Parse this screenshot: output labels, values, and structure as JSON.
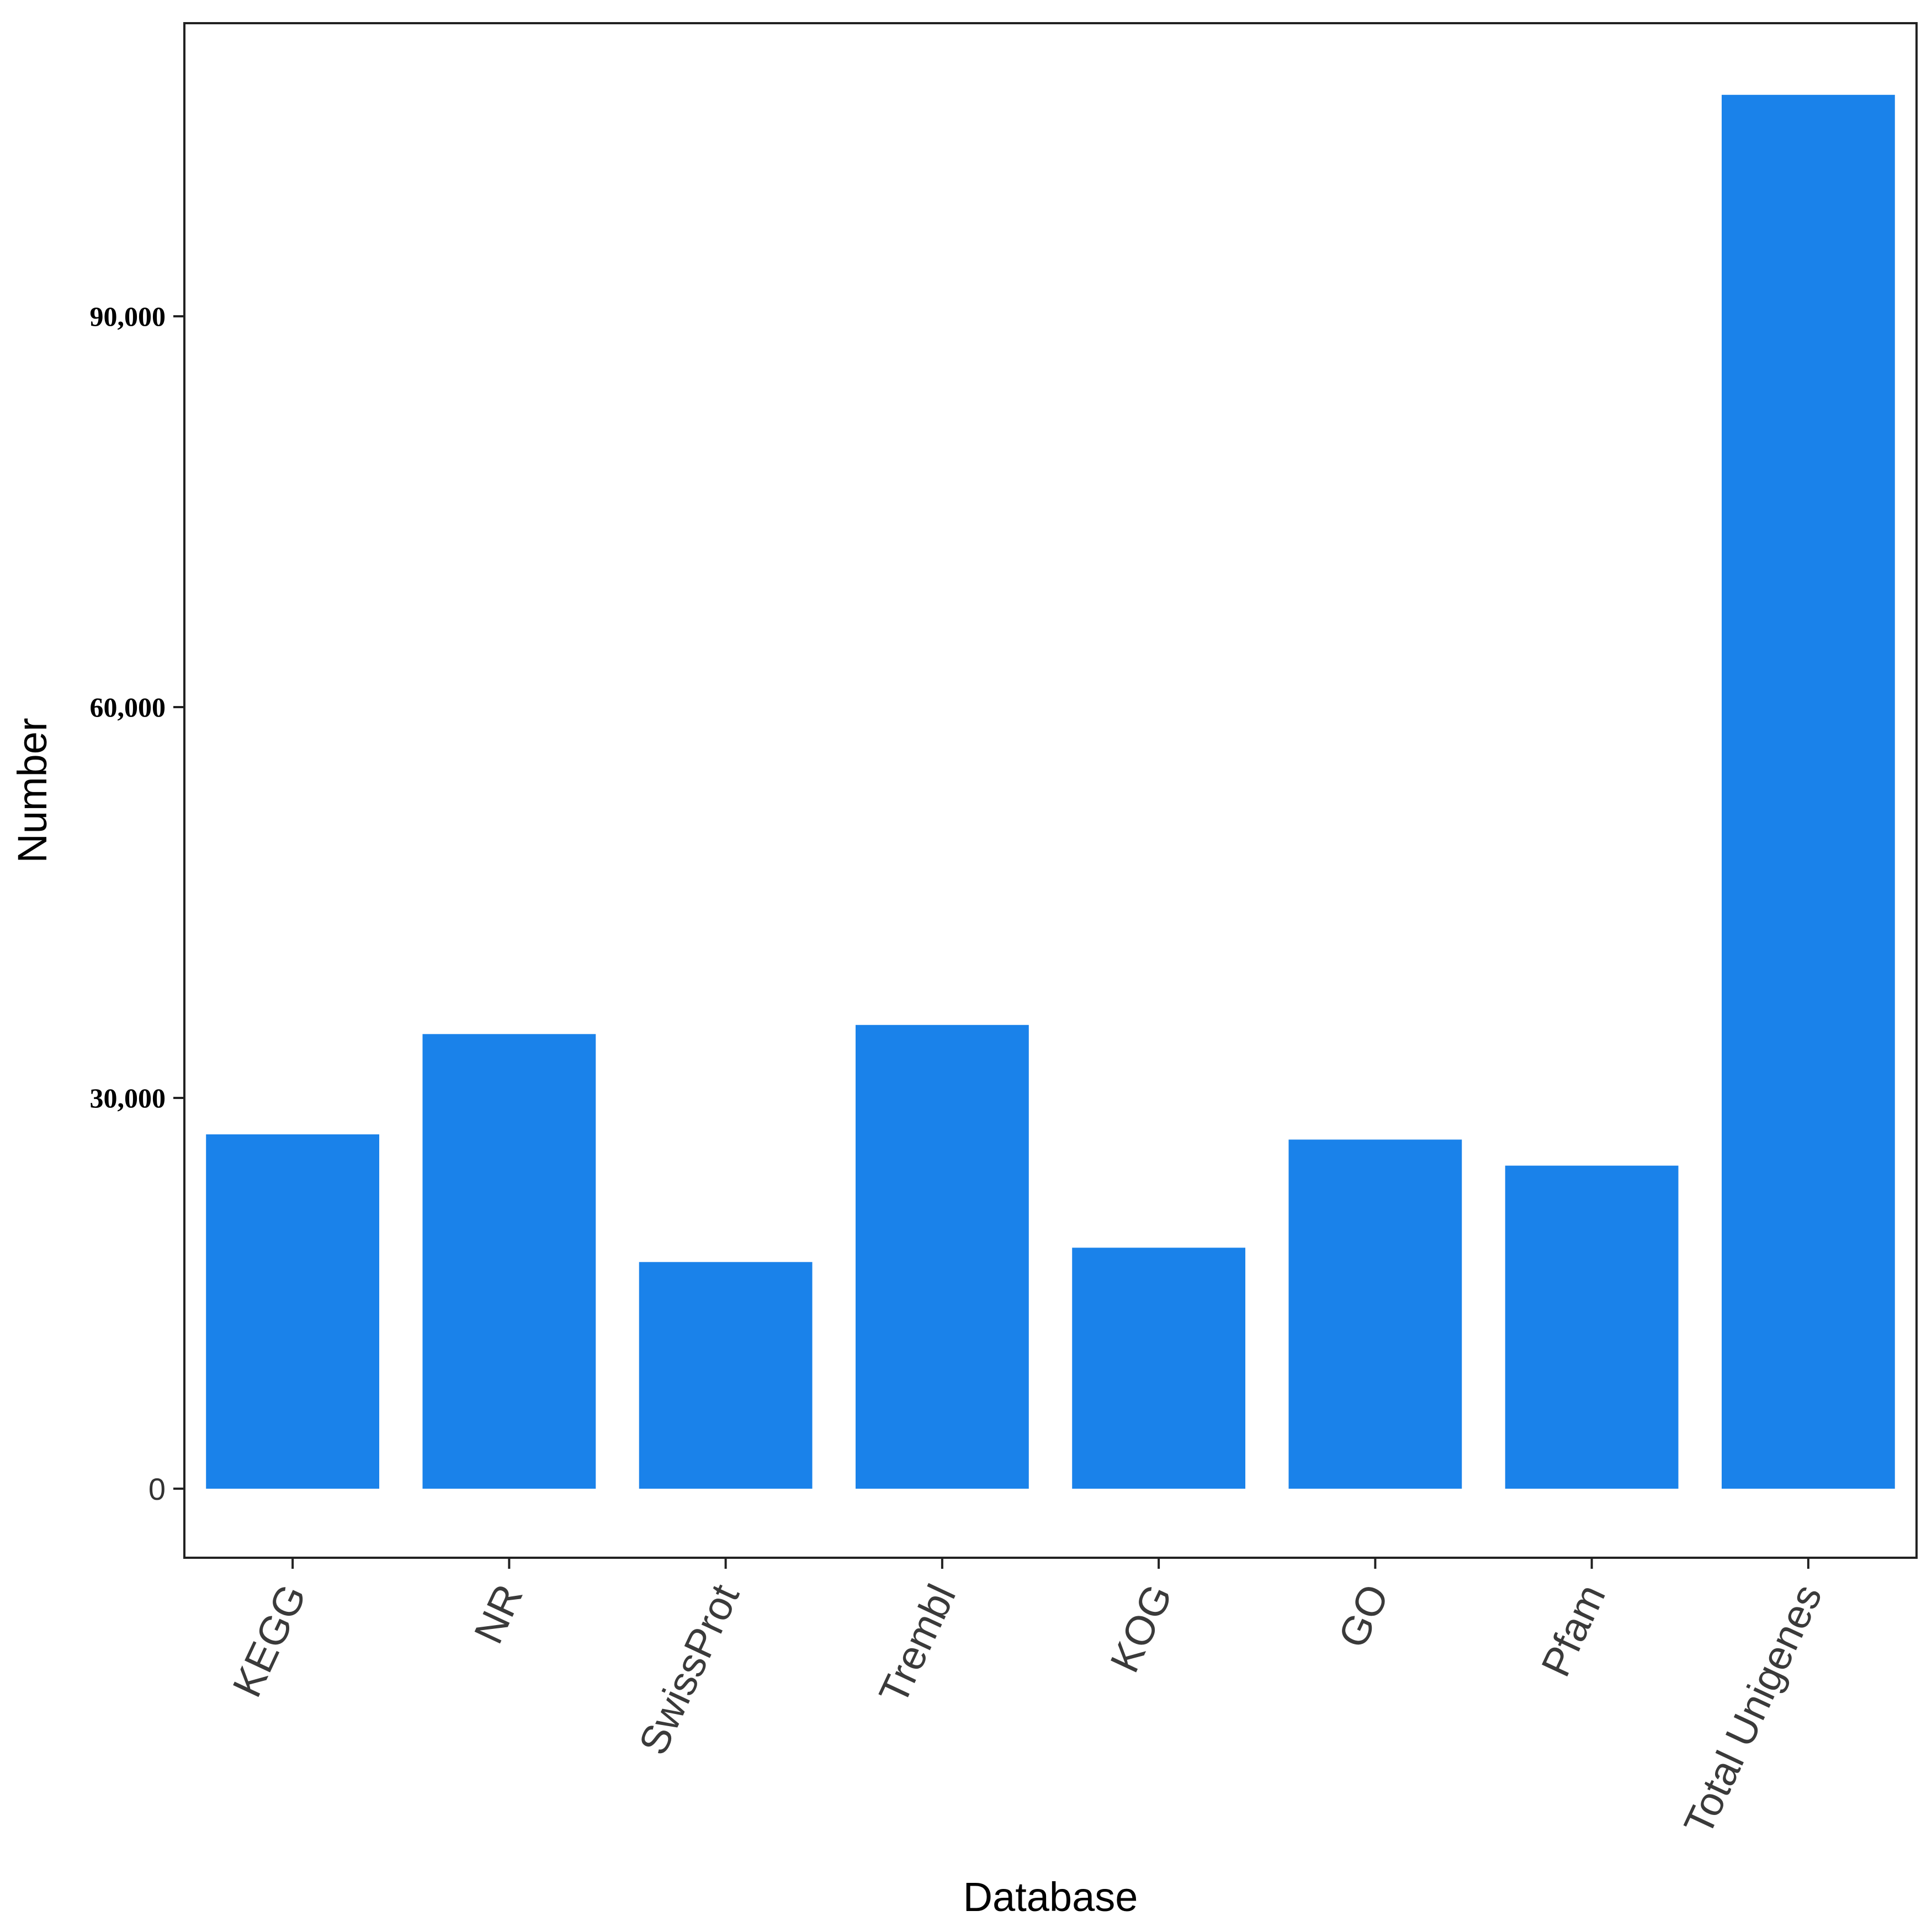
{
  "chart_data": {
    "type": "bar",
    "categories": [
      "KEGG",
      "NR",
      "SwissProt",
      "Trembl",
      "KOG",
      "GO",
      "Pfam",
      "Total Unigenes"
    ],
    "values": [
      27200,
      34900,
      17400,
      35600,
      18500,
      26800,
      24800,
      107000
    ],
    "xlabel": "Database",
    "ylabel": "Number",
    "yticks": [
      0,
      30000,
      60000,
      90000
    ],
    "ytick_labels": [
      "0",
      "30,000",
      "60,000",
      "90,000"
    ],
    "ylim": [
      -5300,
      112500
    ],
    "grid": false,
    "legend": "none",
    "bar_color": "#1a82ea",
    "frame_color": "#222222"
  }
}
